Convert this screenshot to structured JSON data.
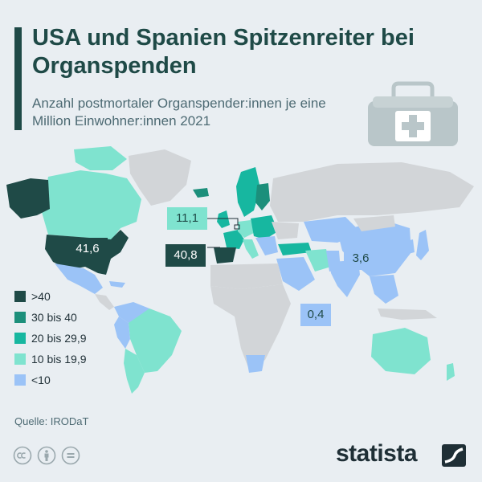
{
  "header": {
    "title": "USA und Spanien Spitzenreiter bei Organspenden",
    "subtitle": "Anzahl postmortaler Organspender:innen je eine Million Einwohner:innen 2021"
  },
  "colors": {
    "over_40": "#1f4a47",
    "30_40": "#1c8f7b",
    "20_29_9": "#17b7a0",
    "10_19_9": "#7fe3cf",
    "under_10": "#9bc3f7",
    "no_data": "#d2d5d8",
    "text_dark": "#1f4a47"
  },
  "map_labels": [
    {
      "name": "usa",
      "value": "41,6"
    },
    {
      "name": "spain",
      "value": "40,8"
    },
    {
      "name": "germany",
      "value": "11,1"
    },
    {
      "name": "china",
      "value": "3,6"
    },
    {
      "name": "india",
      "value": "0,4"
    }
  ],
  "legend": [
    {
      "label": ">40",
      "color": "#1f4a47"
    },
    {
      "label": "30 bis 40",
      "color": "#1c8f7b"
    },
    {
      "label": "20 bis 29,9",
      "color": "#17b7a0"
    },
    {
      "label": "10 bis 19,9",
      "color": "#7fe3cf"
    },
    {
      "label": "<10",
      "color": "#9bc3f7"
    }
  ],
  "footer": {
    "source": "Quelle: IRODaT",
    "brand": "statista",
    "license_icons": [
      "cc-icon",
      "person-icon",
      "equals-icon"
    ]
  },
  "decor": {
    "icon": "medical-kit-icon"
  }
}
